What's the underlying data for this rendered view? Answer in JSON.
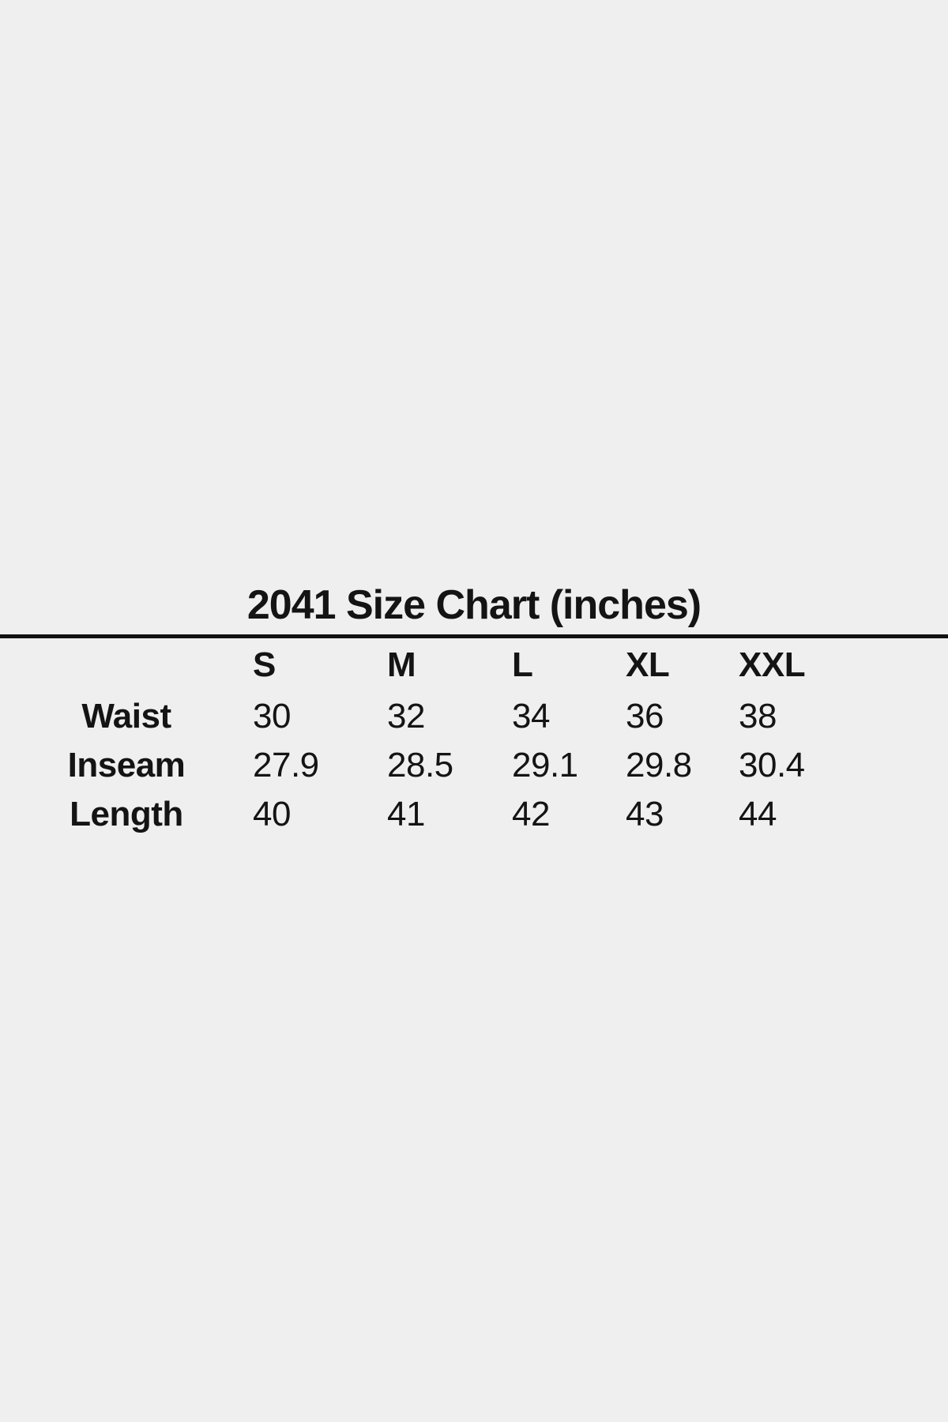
{
  "page": {
    "background_color": "#efefef",
    "text_color": "#141414",
    "rule_color": "#121212"
  },
  "chart_data": {
    "type": "table",
    "title": "2041 Size Chart (inches)",
    "unit": "inches",
    "columns": [
      "S",
      "M",
      "L",
      "XL",
      "XXL"
    ],
    "row_headers": [
      "Waist",
      "Inseam",
      "Length"
    ],
    "rows": [
      {
        "label": "Waist",
        "values": [
          "30",
          "32",
          "34",
          "36",
          "38"
        ]
      },
      {
        "label": "Inseam",
        "values": [
          "27.9",
          "28.5",
          "29.1",
          "29.8",
          "30.4"
        ]
      },
      {
        "label": "Length",
        "values": [
          "40",
          "41",
          "42",
          "43",
          "44"
        ]
      }
    ],
    "layout_hints": {
      "title_centered": true,
      "full_width_rule_below_title": true,
      "header_row_bold": true,
      "row_labels_bold_centered": true,
      "values_left_aligned": true
    }
  }
}
